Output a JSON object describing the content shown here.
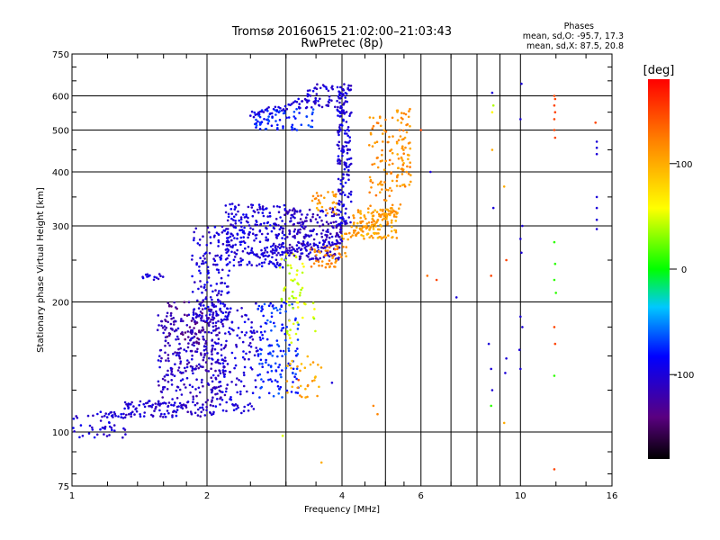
{
  "chart_data": {
    "type": "scatter",
    "title": "Tromsø 20160615 21:02:00–21:03:43",
    "subtitle": "RwPretec (8p)",
    "xlabel": "Frequency [MHz]",
    "ylabel": "Stationary phase Virtual Height [km]",
    "x_scale": "log",
    "y_scale": "log",
    "xlim": [
      1,
      16
    ],
    "ylim": [
      75,
      750
    ],
    "x_ticks": [
      1,
      2,
      4,
      6,
      10,
      16
    ],
    "x_tick_labels": [
      "1",
      "2",
      "4",
      "6",
      "10",
      "16"
    ],
    "x_minor_ticks": [
      3,
      5,
      7,
      8,
      9
    ],
    "y_ticks": [
      75,
      100,
      200,
      300,
      400,
      500,
      600,
      750
    ],
    "y_tick_labels": [
      "75",
      "100",
      "200",
      "300",
      "400",
      "500",
      "600",
      "750"
    ],
    "grid": true,
    "phases_box": {
      "header": "Phases",
      "line_o": "mean, sd,O: -95.7, 17.3",
      "line_x": "mean, sd,X:  87.5, 20.8"
    },
    "colorbar": {
      "label": "[deg]",
      "range": [
        -180,
        180
      ],
      "ticks": [
        100,
        0,
        -100
      ],
      "tick_labels": [
        "100",
        "0",
        "-100"
      ]
    },
    "clusters": [
      {
        "f": [
          1.0,
          1.32
        ],
        "h": [
          97,
          112
        ],
        "phase": -100,
        "n": 55
      },
      {
        "f": [
          1.3,
          2.05
        ],
        "h": [
          108,
          118
        ],
        "phase": -105,
        "n": 120
      },
      {
        "f": [
          1.55,
          2.2
        ],
        "h": [
          118,
          190
        ],
        "phase": -110,
        "n": 280
      },
      {
        "f": [
          1.6,
          2.05
        ],
        "h": [
          160,
          200
        ],
        "phase": -130,
        "n": 60
      },
      {
        "f": [
          1.43,
          1.6
        ],
        "h": [
          225,
          232
        ],
        "phase": -100,
        "n": 14
      },
      {
        "f": [
          1.85,
          2.25
        ],
        "h": [
          180,
          300
        ],
        "phase": -100,
        "n": 150
      },
      {
        "f": [
          2.05,
          2.6
        ],
        "h": [
          110,
          200
        ],
        "phase": -100,
        "n": 160
      },
      {
        "f": [
          2.2,
          3.0
        ],
        "h": [
          240,
          340
        ],
        "phase": -100,
        "n": 260
      },
      {
        "f": [
          2.6,
          3.2
        ],
        "h": [
          120,
          200
        ],
        "phase": -75,
        "n": 140
      },
      {
        "f": [
          2.9,
          3.3
        ],
        "h": [
          190,
          260
        ],
        "phase": 45,
        "n": 40
      },
      {
        "f": [
          3.0,
          4.0
        ],
        "h": [
          250,
          330
        ],
        "phase": -110,
        "n": 220
      },
      {
        "f": [
          2.55,
          3.5
        ],
        "h": [
          500,
          560
        ],
        "phase": -75,
        "n": 70
      },
      {
        "f": [
          3.2,
          4.0
        ],
        "h": [
          560,
          640
        ],
        "phase": -100,
        "n": 60
      },
      {
        "f": [
          3.9,
          4.2
        ],
        "h": [
          300,
          650
        ],
        "phase": -100,
        "n": 170
      },
      {
        "f": [
          3.4,
          4.1
        ],
        "h": [
          240,
          270
        ],
        "phase": 115,
        "n": 50
      },
      {
        "f": [
          3.4,
          3.9
        ],
        "h": [
          320,
          360
        ],
        "phase": 110,
        "n": 30
      },
      {
        "f": [
          4.2,
          5.3
        ],
        "h": [
          280,
          330
        ],
        "phase": 105,
        "n": 110
      },
      {
        "f": [
          4.6,
          5.2
        ],
        "h": [
          300,
          540
        ],
        "phase": 115,
        "n": 80
      },
      {
        "f": [
          5.3,
          5.7
        ],
        "h": [
          370,
          560
        ],
        "phase": 112,
        "n": 70
      },
      {
        "f": [
          3.0,
          3.6
        ],
        "h": [
          120,
          150
        ],
        "phase": 105,
        "n": 30
      },
      {
        "f": [
          3.0,
          3.5
        ],
        "h": [
          160,
          200
        ],
        "phase": 50,
        "n": 20
      }
    ],
    "lines": [
      {
        "f0": 2.5,
        "h0": 255,
        "f1": 4.0,
        "h1": 275,
        "phase": -100,
        "n": 50
      },
      {
        "f0": 2.5,
        "h0": 540,
        "f1": 3.2,
        "h1": 580,
        "phase": -100,
        "n": 30
      },
      {
        "f0": 4.0,
        "h0": 280,
        "f1": 5.4,
        "h1": 330,
        "phase": 110,
        "n": 40
      }
    ],
    "points": [
      [
        6.3,
        400,
        -100
      ],
      [
        6.2,
        230,
        130
      ],
      [
        6.5,
        225,
        150
      ],
      [
        6.0,
        500,
        150
      ],
      [
        7.2,
        205,
        -100
      ],
      [
        8.65,
        610,
        -100
      ],
      [
        8.7,
        570,
        40
      ],
      [
        8.65,
        550,
        60
      ],
      [
        8.65,
        450,
        100
      ],
      [
        8.7,
        330,
        -100
      ],
      [
        8.6,
        230,
        150
      ],
      [
        8.5,
        160,
        -100
      ],
      [
        8.6,
        140,
        -100
      ],
      [
        8.65,
        125,
        -100
      ],
      [
        8.6,
        115,
        10
      ],
      [
        9.2,
        370,
        100
      ],
      [
        9.3,
        250,
        150
      ],
      [
        9.3,
        148,
        -100
      ],
      [
        9.25,
        137,
        -100
      ],
      [
        9.2,
        105,
        100
      ],
      [
        10.05,
        640,
        -100
      ],
      [
        10.0,
        530,
        -100
      ],
      [
        10.1,
        300,
        -100
      ],
      [
        10.0,
        280,
        -100
      ],
      [
        10.05,
        260,
        -100
      ],
      [
        10.0,
        185,
        -100
      ],
      [
        10.1,
        175,
        -100
      ],
      [
        9.95,
        155,
        -100
      ],
      [
        10.0,
        140,
        -100
      ],
      [
        11.9,
        600,
        150
      ],
      [
        11.95,
        590,
        150
      ],
      [
        11.9,
        570,
        150
      ],
      [
        11.95,
        550,
        150
      ],
      [
        11.9,
        530,
        150
      ],
      [
        11.9,
        500,
        150
      ],
      [
        11.95,
        480,
        150
      ],
      [
        11.9,
        275,
        10
      ],
      [
        11.95,
        245,
        10
      ],
      [
        11.9,
        225,
        10
      ],
      [
        12.0,
        210,
        10
      ],
      [
        11.9,
        175,
        150
      ],
      [
        11.95,
        160,
        150
      ],
      [
        11.9,
        135,
        10
      ],
      [
        11.9,
        82,
        150
      ],
      [
        14.8,
        470,
        -100
      ],
      [
        14.8,
        455,
        -100
      ],
      [
        14.8,
        440,
        -100
      ],
      [
        14.8,
        350,
        -100
      ],
      [
        14.8,
        330,
        -100
      ],
      [
        14.8,
        310,
        -100
      ],
      [
        14.8,
        295,
        -100
      ],
      [
        14.7,
        520,
        150
      ],
      [
        4.8,
        110,
        120
      ],
      [
        4.7,
        115,
        120
      ],
      [
        2.95,
        98,
        50
      ],
      [
        3.8,
        130,
        -100
      ],
      [
        3.6,
        85,
        100
      ],
      [
        3.45,
        145,
        110
      ],
      [
        3.2,
        132,
        150
      ]
    ]
  }
}
